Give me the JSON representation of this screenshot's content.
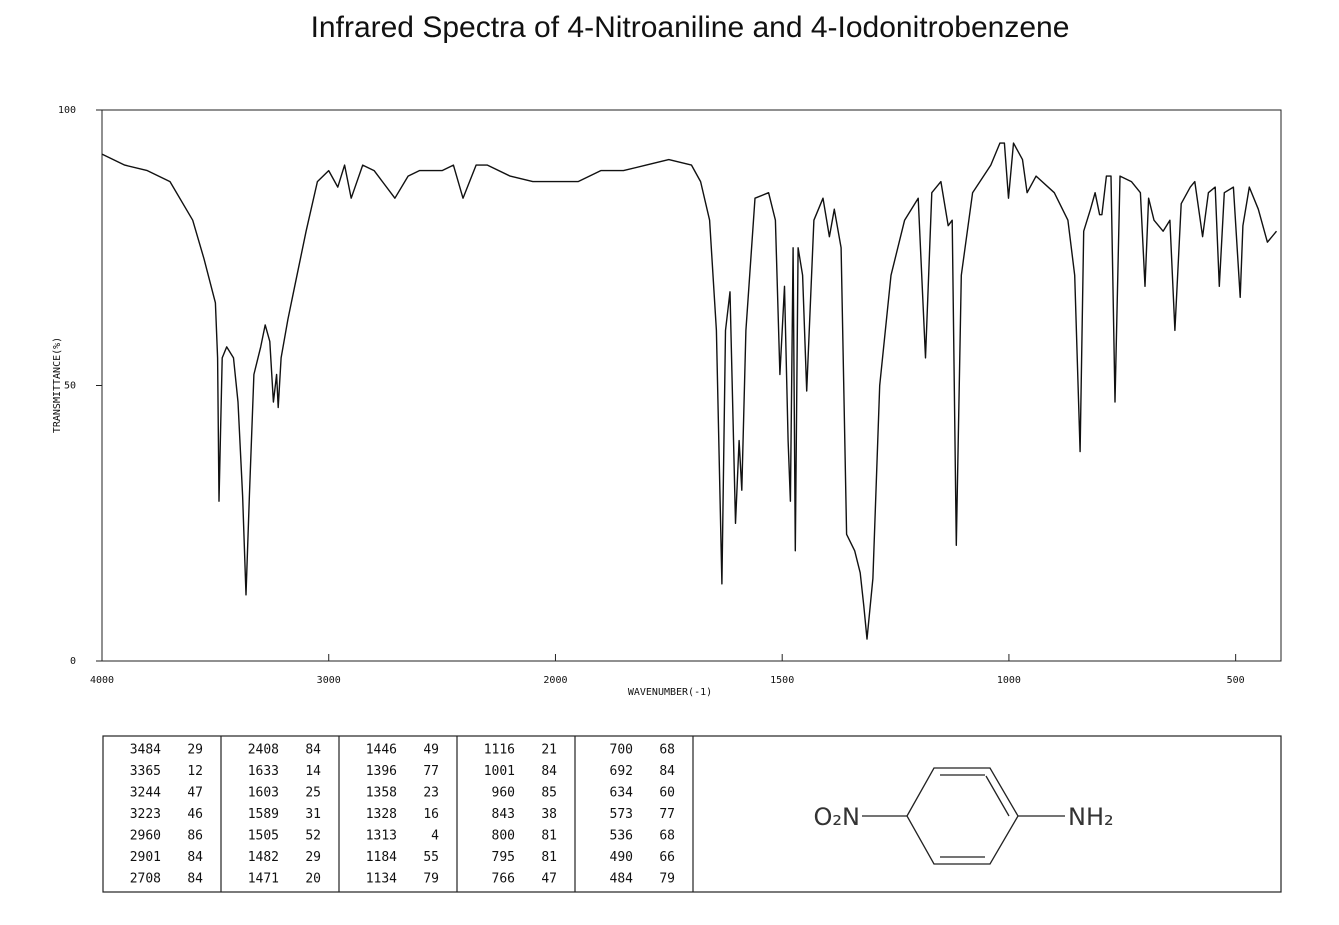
{
  "chart_data": {
    "type": "line",
    "title": "Infrared Spectra of 4-Nitroaniline and 4-Iodonitrobenzene",
    "x_label": "WAVENUMBER(-1)",
    "y_label": "TRANSMITTANCE(%)",
    "xlim": [
      4000,
      400
    ],
    "x_scale_break": 2000,
    "xticks": [
      4000,
      3000,
      2000,
      1500,
      1000,
      500
    ],
    "ylim": [
      0,
      100
    ],
    "yticks": [
      0,
      50,
      100
    ],
    "color": "#111111",
    "x": [
      4000,
      3900,
      3800,
      3700,
      3600,
      3550,
      3500,
      3490,
      3484,
      3470,
      3450,
      3420,
      3400,
      3380,
      3365,
      3350,
      3330,
      3300,
      3280,
      3260,
      3244,
      3230,
      3223,
      3210,
      3180,
      3150,
      3100,
      3050,
      3000,
      2960,
      2930,
      2901,
      2850,
      2800,
      2708,
      2650,
      2600,
      2500,
      2450,
      2408,
      2350,
      2300,
      2200,
      2100,
      2000,
      1950,
      1900,
      1850,
      1800,
      1750,
      1700,
      1680,
      1660,
      1645,
      1633,
      1625,
      1615,
      1603,
      1595,
      1589,
      1580,
      1560,
      1530,
      1515,
      1505,
      1495,
      1487,
      1482,
      1476,
      1471,
      1465,
      1455,
      1446,
      1430,
      1410,
      1396,
      1385,
      1370,
      1358,
      1340,
      1328,
      1320,
      1313,
      1300,
      1285,
      1260,
      1230,
      1200,
      1184,
      1170,
      1150,
      1134,
      1125,
      1116,
      1105,
      1080,
      1040,
      1020,
      1010,
      1001,
      990,
      970,
      960,
      940,
      900,
      870,
      855,
      843,
      835,
      820,
      810,
      800,
      795,
      785,
      775,
      766,
      755,
      730,
      710,
      700,
      692,
      680,
      660,
      645,
      634,
      620,
      600,
      590,
      573,
      560,
      545,
      536,
      525,
      505,
      490,
      484,
      470,
      450,
      430,
      410
    ],
    "values": [
      92,
      90,
      89,
      87,
      80,
      73,
      65,
      55,
      29,
      55,
      57,
      55,
      47,
      30,
      12,
      30,
      52,
      57,
      61,
      58,
      47,
      52,
      46,
      55,
      62,
      68,
      78,
      87,
      89,
      86,
      90,
      84,
      90,
      89,
      84,
      88,
      89,
      89,
      90,
      84,
      90,
      90,
      88,
      87,
      87,
      87,
      89,
      89,
      90,
      91,
      90,
      87,
      80,
      60,
      14,
      60,
      67,
      25,
      40,
      31,
      60,
      84,
      85,
      80,
      52,
      68,
      40,
      29,
      75,
      20,
      75,
      70,
      49,
      80,
      84,
      77,
      82,
      75,
      23,
      20,
      16,
      10,
      4,
      15,
      50,
      70,
      80,
      84,
      55,
      85,
      87,
      79,
      80,
      21,
      70,
      85,
      90,
      94,
      94,
      84,
      94,
      91,
      85,
      88,
      85,
      80,
      70,
      38,
      78,
      82,
      85,
      81,
      81,
      88,
      88,
      47,
      88,
      87,
      85,
      68,
      84,
      80,
      78,
      80,
      60,
      83,
      86,
      87,
      77,
      85,
      86,
      68,
      85,
      86,
      66,
      79,
      86,
      82,
      76,
      78
    ]
  },
  "peak_table": [
    [
      [
        3484,
        29
      ],
      [
        3365,
        12
      ],
      [
        3244,
        47
      ],
      [
        3223,
        46
      ],
      [
        2960,
        86
      ],
      [
        2901,
        84
      ],
      [
        2708,
        84
      ]
    ],
    [
      [
        2408,
        84
      ],
      [
        1633,
        14
      ],
      [
        1603,
        25
      ],
      [
        1589,
        31
      ],
      [
        1505,
        52
      ],
      [
        1482,
        29
      ],
      [
        1471,
        20
      ]
    ],
    [
      [
        1446,
        49
      ],
      [
        1396,
        77
      ],
      [
        1358,
        23
      ],
      [
        1328,
        16
      ],
      [
        1313,
        4
      ],
      [
        1184,
        55
      ],
      [
        1134,
        79
      ]
    ],
    [
      [
        1116,
        21
      ],
      [
        1001,
        84
      ],
      [
        960,
        85
      ],
      [
        843,
        38
      ],
      [
        800,
        81
      ],
      [
        795,
        81
      ],
      [
        766,
        47
      ]
    ],
    [
      [
        700,
        68
      ],
      [
        692,
        84
      ],
      [
        634,
        60
      ],
      [
        573,
        77
      ],
      [
        536,
        68
      ],
      [
        490,
        66
      ],
      [
        484,
        79
      ]
    ]
  ],
  "structure": {
    "left_group": "O₂N",
    "right_group": "NH₂"
  }
}
